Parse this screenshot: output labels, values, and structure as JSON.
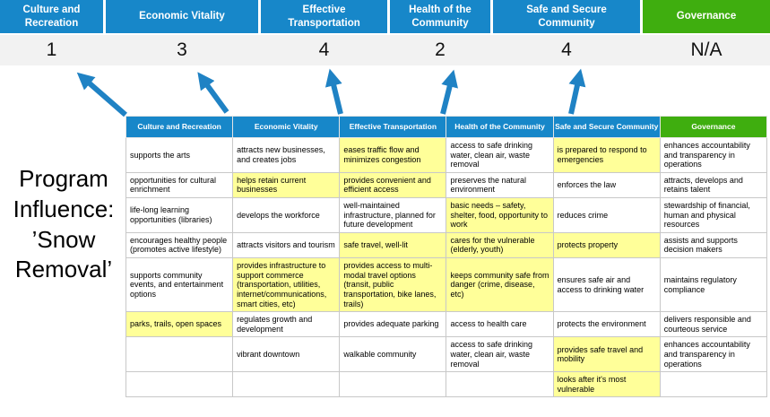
{
  "slide": {
    "program_label": "Program Influence: ’Snow Removal’"
  },
  "colors": {
    "pillar_blue": "#1787c9",
    "governance_green": "#3fae0f",
    "highlight_yellow": "#ffff99",
    "score_band_gray": "#f2f2f2",
    "arrow_blue": "#1f82c4"
  },
  "summary": {
    "columns": [
      {
        "label": "Culture and Recreation",
        "score": "1"
      },
      {
        "label": "Economic Vitality",
        "score": "3"
      },
      {
        "label": "Effective Transportation",
        "score": "4"
      },
      {
        "label": "Health of the Community",
        "score": "2"
      },
      {
        "label": "Safe and Secure Community",
        "score": "4"
      },
      {
        "label": "Governance",
        "score": "N/A"
      }
    ]
  },
  "table": {
    "headers": [
      "Culture and Recreation",
      "Economic Vitality",
      "Effective Transportation",
      "Health of the Community",
      "Safe and Secure Community",
      "Governance"
    ],
    "rows": [
      [
        {
          "text": "supports the arts",
          "hl": false
        },
        {
          "text": "attracts new businesses, and creates jobs",
          "hl": false
        },
        {
          "text": "eases traffic flow and minimizes congestion",
          "hl": true
        },
        {
          "text": "access to safe drinking water, clean air, waste removal",
          "hl": false
        },
        {
          "text": "is prepared to respond to emergencies",
          "hl": true
        },
        {
          "text": "enhances accountability and transparency in operations",
          "hl": false
        }
      ],
      [
        {
          "text": "opportunities for cultural enrichment",
          "hl": false
        },
        {
          "text": "helps retain current businesses",
          "hl": true
        },
        {
          "text": "provides convenient and efficient access",
          "hl": true
        },
        {
          "text": "preserves the natural environment",
          "hl": false
        },
        {
          "text": "enforces the law",
          "hl": false
        },
        {
          "text": "attracts, develops and retains talent",
          "hl": false
        }
      ],
      [
        {
          "text": "life-long learning opportunities (libraries)",
          "hl": false
        },
        {
          "text": "develops the workforce",
          "hl": false
        },
        {
          "text": "well-maintained infrastructure, planned for future development",
          "hl": false
        },
        {
          "text": "basic needs – safety, shelter, food, opportunity to work",
          "hl": true
        },
        {
          "text": "reduces crime",
          "hl": false
        },
        {
          "text": "stewardship of financial, human and physical resources",
          "hl": false
        }
      ],
      [
        {
          "text": "encourages healthy people (promotes active lifestyle)",
          "hl": false
        },
        {
          "text": "attracts visitors and tourism",
          "hl": false
        },
        {
          "text": "safe travel, well-lit",
          "hl": true
        },
        {
          "text": "cares for the vulnerable (elderly, youth)",
          "hl": true
        },
        {
          "text": "protects property",
          "hl": true
        },
        {
          "text": "assists and supports decision makers",
          "hl": false
        }
      ],
      [
        {
          "text": "supports community events, and entertainment options",
          "hl": false
        },
        {
          "text": "provides infrastructure to support commerce (transportation, utilities, internet/communications, smart cities, etc)",
          "hl": true
        },
        {
          "text": "provides access to multi-modal travel options (transit, public transportation, bike lanes, trails)",
          "hl": true
        },
        {
          "text": "keeps community safe from danger (crime, disease, etc)",
          "hl": true
        },
        {
          "text": "ensures safe air and access to drinking water",
          "hl": false
        },
        {
          "text": "maintains regulatory compliance",
          "hl": false
        }
      ],
      [
        {
          "text": "parks, trails, open spaces",
          "hl": true
        },
        {
          "text": "regulates growth and development",
          "hl": false
        },
        {
          "text": "provides adequate parking",
          "hl": false
        },
        {
          "text": "access to health care",
          "hl": false
        },
        {
          "text": "protects the environment",
          "hl": false
        },
        {
          "text": "delivers responsible and courteous service",
          "hl": false
        }
      ],
      [
        {
          "text": "",
          "hl": false
        },
        {
          "text": "vibrant downtown",
          "hl": false
        },
        {
          "text": "walkable community",
          "hl": false
        },
        {
          "text": "access to safe drinking water, clean air, waste removal",
          "hl": false
        },
        {
          "text": "provides safe travel and mobility",
          "hl": true
        },
        {
          "text": "enhances accountability and transparency in operations",
          "hl": false
        }
      ],
      [
        {
          "text": "",
          "hl": false
        },
        {
          "text": "",
          "hl": false
        },
        {
          "text": "",
          "hl": false
        },
        {
          "text": "",
          "hl": false
        },
        {
          "text": "looks after it's most vulnerable",
          "hl": true
        },
        {
          "text": "",
          "hl": false
        }
      ]
    ]
  }
}
